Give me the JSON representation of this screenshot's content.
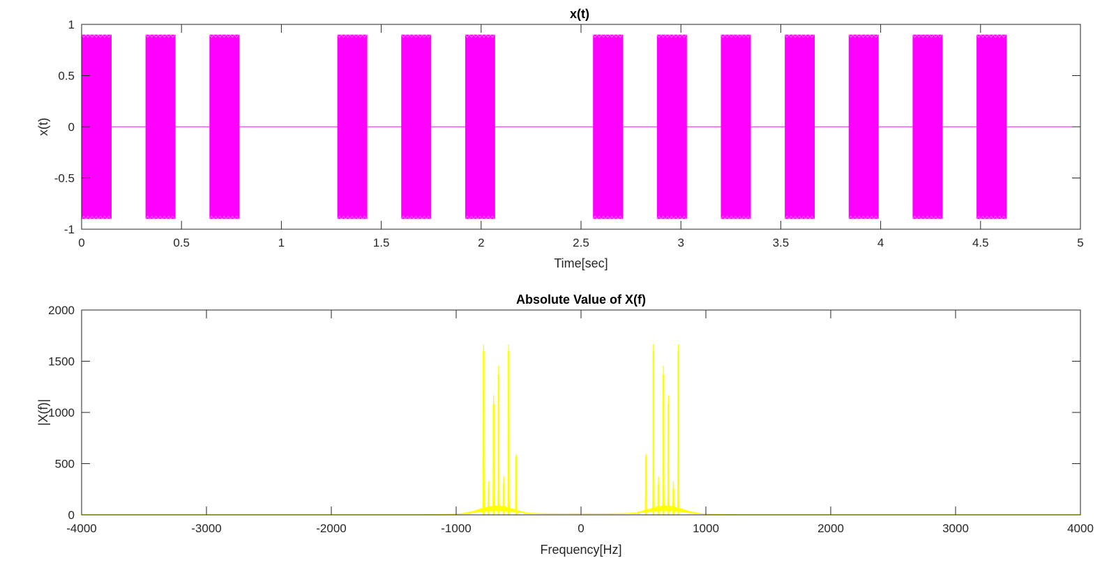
{
  "chart_data": [
    {
      "type": "line",
      "title": "x(t)",
      "xlabel": "Time[sec]",
      "ylabel": "x(t)",
      "xlim": [
        0,
        5
      ],
      "ylim": [
        -1,
        1
      ],
      "xticks": [
        "0",
        "0.5",
        "1",
        "1.5",
        "2",
        "2.5",
        "3",
        "3.5",
        "4",
        "4.5",
        "5"
      ],
      "yticks": [
        "1",
        "0.5",
        "0",
        "-0.5",
        "-1"
      ],
      "grid": false,
      "series": [
        {
          "color": "#ff00ff",
          "amplitude": 0.9,
          "baseline": 0,
          "bursts": [
            [
              0.0,
              0.15
            ],
            [
              0.32,
              0.47
            ],
            [
              0.64,
              0.79
            ],
            [
              1.28,
              1.43
            ],
            [
              1.6,
              1.75
            ],
            [
              1.92,
              2.07
            ],
            [
              2.56,
              2.71
            ],
            [
              2.88,
              3.03
            ],
            [
              3.2,
              3.35
            ],
            [
              3.52,
              3.67
            ],
            [
              3.84,
              3.99
            ],
            [
              4.16,
              4.31
            ],
            [
              4.48,
              4.63
            ]
          ]
        }
      ]
    },
    {
      "type": "line",
      "title": "Absolute Value of X(f)",
      "xlabel": "Frequency[Hz]",
      "ylabel": "|X(f)|",
      "xlim": [
        -4000,
        4000
      ],
      "ylim": [
        0,
        2000
      ],
      "xticks": [
        "-4000",
        "-3000",
        "-2000",
        "-1000",
        "0",
        "1000",
        "2000",
        "3000",
        "4000"
      ],
      "yticks": [
        "2000",
        "1500",
        "1000",
        "500",
        "0"
      ],
      "grid": false,
      "series": [
        {
          "color": "#ffff00",
          "peaks": [
            {
              "f": 580,
              "mag": 1600
            },
            {
              "f": 660,
              "mag": 1370
            },
            {
              "f": 700,
              "mag": 1080
            },
            {
              "f": 780,
              "mag": 1600
            },
            {
              "f": 520,
              "mag": 570
            },
            {
              "f": 620,
              "mag": 300
            },
            {
              "f": 740,
              "mag": 250
            },
            {
              "f": -580,
              "mag": 1600
            },
            {
              "f": -660,
              "mag": 1370
            },
            {
              "f": -700,
              "mag": 1080
            },
            {
              "f": -780,
              "mag": 1600
            },
            {
              "f": -520,
              "mag": 570
            },
            {
              "f": -620,
              "mag": 300
            },
            {
              "f": -740,
              "mag": 250
            }
          ]
        }
      ]
    }
  ]
}
